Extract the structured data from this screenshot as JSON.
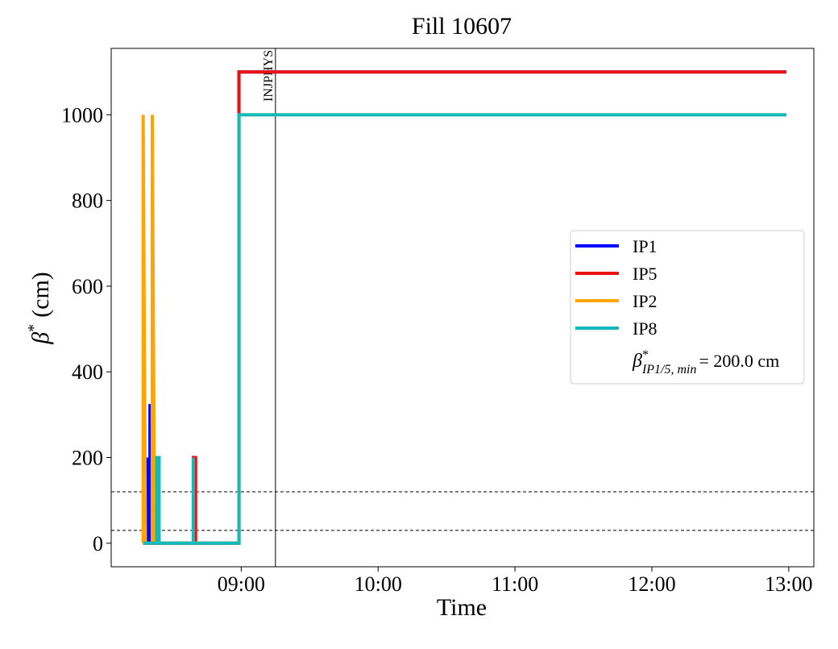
{
  "chart_data": {
    "type": "line",
    "title": "Fill 10607",
    "x_label": "Time",
    "y_label": {
      "symbol": "β",
      "sup": "*",
      "unit": "(cm)"
    },
    "xlim": [
      "08:03",
      "13:11"
    ],
    "xticks": [
      "09:00",
      "10:00",
      "11:00",
      "12:00",
      "13:00"
    ],
    "ylim": [
      -55,
      1155
    ],
    "yticks": [
      0,
      200,
      400,
      600,
      800,
      1000
    ],
    "legend_position": "right",
    "series": [
      {
        "name": "IP1",
        "color": "#0000ff",
        "x": [
          "08:17",
          "08:19",
          "08:19",
          "08:19",
          "08:20",
          "08:20",
          "08:20",
          "08:59",
          "08:59",
          "12:59"
        ],
        "values": [
          0,
          0,
          200,
          0,
          0,
          325,
          0,
          0,
          1100,
          1100
        ]
      },
      {
        "name": "IP5",
        "color": "#ee1111",
        "x": [
          "08:17",
          "08:39",
          "08:39",
          "08:40",
          "08:40",
          "08:59",
          "08:59",
          "08:59",
          "12:59"
        ],
        "values": [
          0,
          0,
          200,
          200,
          0,
          0,
          1000,
          1100,
          1100
        ]
      },
      {
        "name": "IP2",
        "color": "#ffa500",
        "x": [
          "08:17",
          "08:17",
          "08:18",
          "08:21",
          "08:21",
          "08:22",
          "08:22",
          "08:23",
          "08:23",
          "08:59",
          "08:59",
          "12:59"
        ],
        "values": [
          0,
          1000,
          0,
          0,
          1000,
          0,
          200,
          200,
          0,
          0,
          1000,
          1000
        ]
      },
      {
        "name": "IP8",
        "color": "#11bbbb",
        "x": [
          "08:17",
          "08:23",
          "08:23",
          "08:24",
          "08:24",
          "08:39",
          "08:39",
          "08:39",
          "08:59",
          "08:59",
          "12:59"
        ],
        "values": [
          0,
          0,
          200,
          200,
          0,
          0,
          200,
          0,
          0,
          1000,
          1000
        ]
      }
    ],
    "hlines": [
      120,
      30
    ],
    "vline": {
      "x": "09:15",
      "label": "INJPHYS"
    },
    "legend_note": {
      "symbol": "β",
      "sup": "*",
      "sub": "IP1/5, min",
      "text": "= 200.0 cm"
    }
  }
}
